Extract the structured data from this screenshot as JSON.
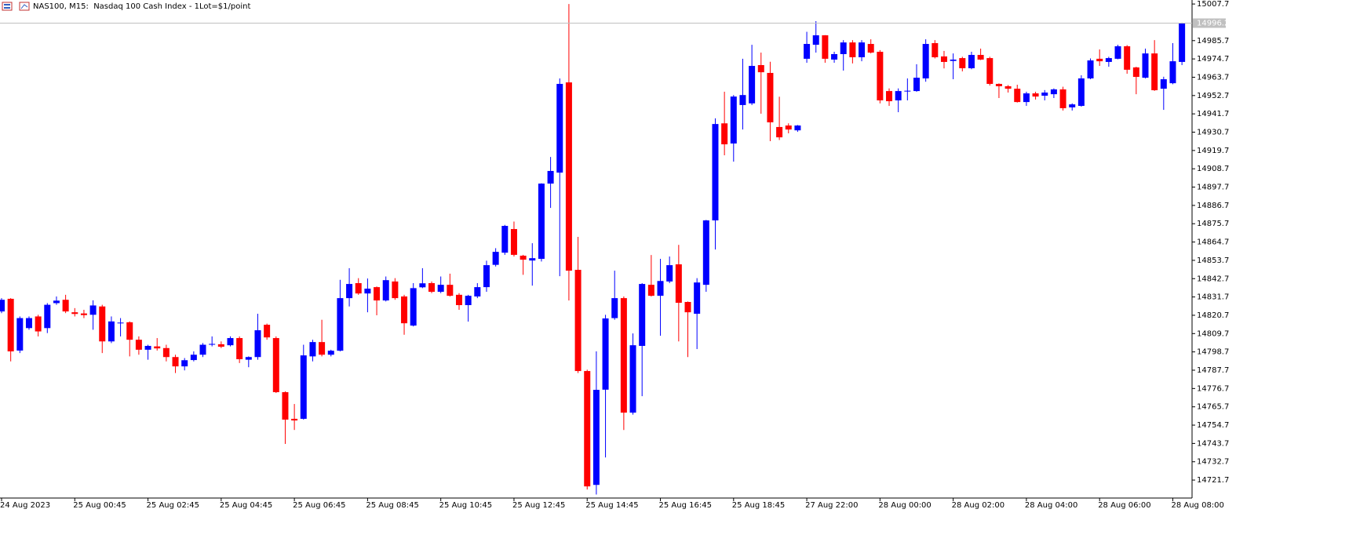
{
  "chart_data": {
    "type": "candlestick",
    "title": "NAS100, M15:  Nasdaq 100 Cash Index - 1Lot=$1/point",
    "categories": [
      "24 Aug 2023",
      null,
      null,
      null,
      null,
      null,
      null,
      null,
      "25 Aug 00:45",
      null,
      null,
      null,
      null,
      null,
      null,
      null,
      "25 Aug 02:45",
      null,
      null,
      null,
      null,
      null,
      null,
      null,
      "25 Aug 04:45",
      null,
      null,
      null,
      null,
      null,
      null,
      null,
      "25 Aug 06:45",
      null,
      null,
      null,
      null,
      null,
      null,
      null,
      "25 Aug 08:45",
      null,
      null,
      null,
      null,
      null,
      null,
      null,
      "25 Aug 10:45",
      null,
      null,
      null,
      null,
      null,
      null,
      null,
      "25 Aug 12:45",
      null,
      null,
      null,
      null,
      null,
      null,
      null,
      "25 Aug 14:45",
      null,
      null,
      null,
      null,
      null,
      null,
      null,
      "25 Aug 16:45",
      null,
      null,
      null,
      null,
      null,
      null,
      null,
      "25 Aug 18:45",
      null,
      null,
      null,
      null,
      null,
      null,
      null,
      "27 Aug 22:00",
      null,
      null,
      null,
      null,
      null,
      null,
      null,
      "28 Aug 00:00",
      null,
      null,
      null,
      null,
      null,
      null,
      null,
      "28 Aug 02:00",
      null,
      null,
      null,
      null,
      null,
      null,
      null,
      "28 Aug 04:00",
      null,
      null,
      null,
      null,
      null,
      null,
      null,
      "28 Aug 06:00",
      null,
      null,
      null,
      null,
      null,
      null,
      null,
      "28 Aug 08:00",
      null
    ],
    "open": [
      14823,
      14830.6,
      14799.5,
      14813,
      14820,
      14813,
      14828,
      14830,
      14822.5,
      14821.8,
      14821,
      14826,
      14805,
      14816,
      14816.5,
      14806,
      14800,
      14802,
      14801,
      14795.6,
      14790,
      14793.8,
      14797,
      14803,
      14803.3,
      14802.7,
      14807,
      14794,
      14795.6,
      14815,
      14807,
      14774.5,
      14758.5,
      14758.5,
      14796,
      14804.6,
      14797,
      14799.4,
      14831,
      14840,
      14833.8,
      14837.6,
      14829.6,
      14841,
      14832,
      14814.5,
      14837.5,
      14840,
      14834.8,
      14839,
      14833,
      14826.8,
      14832,
      14837.6,
      14851,
      14858.3,
      14872.5,
      14856.5,
      14853.6,
      14854.6,
      14899.8,
      14906.4,
      14960.6,
      14848,
      14787.2,
      14718.8,
      14776,
      14819,
      14831,
      14762.2,
      14802.3,
      14839,
      14832.4,
      14841,
      14851.3,
      14828.7,
      14821.6,
      14839,
      14877.7,
      14936,
      14923.9,
      14947,
      14948,
      14971,
      14966.3,
      14933.8,
      14934.7,
      14931.8,
      14974.8,
      14983.2,
      14988.9,
      14974.3,
      14977.6,
      14984.6,
      14975.7,
      14983.7,
      14979,
      14955.4,
      14949.8,
      14955.4,
      14955.4,
      14963,
      14984.2,
      14976.2,
      14973.5,
      14975.2,
      14969.1,
      14977.1,
      14975.2,
      14959.7,
      14958.3,
      14956.8,
      14948.8,
      14954,
      14952.6,
      14953.5,
      14956.4,
      14945.6,
      14946.5,
      14963,
      14974.8,
      14972.9,
      14974.8,
      14982.3,
      14969.6,
      14963.4,
      14978,
      14956.8,
      14960.1,
      14972.9
    ],
    "high": [
      14831,
      14831,
      14820,
      14820,
      14821,
      14828,
      14832,
      14833,
      14825,
      14824,
      14829.7,
      14827,
      14820,
      14819,
      14817,
      14808,
      14803,
      14807,
      14803,
      14797,
      14795,
      14799,
      14804,
      14808,
      14805,
      14808,
      14808,
      14796,
      14821.6,
      14815.7,
      14808,
      14775,
      14767.4,
      14803,
      14806,
      14818,
      14800,
      14842,
      14849,
      14843,
      14842.8,
      14838,
      14844,
      14843,
      14833,
      14840,
      14849,
      14841,
      14844,
      14845.7,
      14834,
      14833,
      14840,
      14853.5,
      14861,
      14875,
      14877,
      14857,
      14864,
      14900,
      14915.8,
      14963,
      15007.7,
      14867.8,
      14788,
      14799,
      14821,
      14847.5,
      14832,
      14809.8,
      14840,
      14856.9,
      14854.6,
      14856,
      14863,
      14829,
      14843,
      14878,
      14939,
      14955,
      14953,
      14974.8,
      14983.2,
      14978.5,
      14973,
      14952,
      14936,
      14935,
      14991,
      14997.4,
      14989,
      14979,
      14986,
      14986,
      14986,
      14986.5,
      14980,
      14957,
      14957,
      14963,
      14971.5,
      14986.5,
      14986,
      14979.5,
      14978,
      14976,
      14979,
      14980.9,
      14976,
      14960,
      14959,
      14959.2,
      14955,
      14955,
      14956,
      14957,
      14958,
      14948,
      14964.9,
      14975,
      14980.4,
      14976,
      14983.2,
      14983,
      14970,
      14980.9,
      14986,
      14964,
      14984.2,
      14996.5
    ],
    "low": [
      14822,
      14793,
      14798,
      14812,
      14808,
      14810,
      14827,
      14822,
      14820,
      14819,
      14812,
      14798,
      14804,
      14808,
      14796,
      14797,
      14794,
      14799.5,
      14793,
      14786,
      14787.6,
      14793,
      14795.6,
      14802,
      14801,
      14802,
      14792,
      14789.5,
      14794,
      14806,
      14774,
      14743.4,
      14751.8,
      14758,
      14793,
      14796,
      14796,
      14799,
      14826,
      14833,
      14822.5,
      14820.7,
      14829,
      14830,
      14809,
      14814,
      14837,
      14834,
      14834,
      14832,
      14824,
      14816.9,
      14831,
      14834.8,
      14850,
      14857,
      14856,
      14845,
      14838.5,
      14853,
      14885.2,
      14844.2,
      14829.6,
      14786,
      14716,
      14713,
      14735.3,
      14818,
      14751.8,
      14761,
      14772.1,
      14832,
      14808.4,
      14840,
      14805,
      14795.6,
      14800.4,
      14834.8,
      14860.2,
      14916.8,
      14913,
      14932.3,
      14947,
      14941.8,
      14925.3,
      14926,
      14930,
      14930.9,
      14972.4,
      14978.5,
      14972.4,
      14972.4,
      14967.7,
      14972,
      14973.3,
      14978,
      14948,
      14946.5,
      14942.7,
      14949.8,
      14955,
      14961,
      14975,
      14969,
      14962.5,
      14967.2,
      14968.5,
      14974,
      14958.7,
      14951.2,
      14954.5,
      14948.5,
      14946.5,
      14950.3,
      14949.8,
      14951.2,
      14943.7,
      14943.7,
      14946,
      14962.5,
      14970.5,
      14970,
      14974.5,
      14965.8,
      14953.5,
      14963,
      14955.5,
      14944.1,
      14959.5,
      14971
    ],
    "close": [
      14830,
      14799,
      14819,
      14819,
      14811,
      14827,
      14829.5,
      14823,
      14821.5,
      14820.8,
      14826.6,
      14805,
      14817,
      14816.3,
      14806,
      14800,
      14802.3,
      14800.8,
      14795.6,
      14790,
      14793.7,
      14797,
      14803,
      14803.5,
      14801.8,
      14807,
      14794.3,
      14795.6,
      14811.7,
      14807.4,
      14774.5,
      14758,
      14757.5,
      14796.6,
      14804.6,
      14797,
      14799.4,
      14831,
      14839.5,
      14833.8,
      14836.7,
      14829.6,
      14841.8,
      14831,
      14815.9,
      14837,
      14839.9,
      14834.8,
      14839,
      14832.4,
      14826.8,
      14832.4,
      14837.6,
      14850.8,
      14858.8,
      14874.4,
      14857,
      14854.1,
      14855,
      14899.8,
      14907.4,
      14959.7,
      14847.5,
      14787.2,
      14717.9,
      14775.9,
      14818.8,
      14831,
      14762.2,
      14802.7,
      14839.5,
      14832.4,
      14841.3,
      14850.8,
      14828.2,
      14822.5,
      14840.4,
      14877.7,
      14935.6,
      14923.4,
      14952.1,
      14953,
      14970.5,
      14966.7,
      14936.6,
      14927.6,
      14932.3,
      14934.7,
      14983.7,
      14988.9,
      14974.8,
      14977.6,
      14984.6,
      14975.7,
      14984.6,
      14978.5,
      14949.8,
      14949.3,
      14955.4,
      14955.6,
      14963.4,
      14983.7,
      14975.7,
      14972.9,
      14974.3,
      14969.1,
      14977.1,
      14974.3,
      14959.7,
      14958.3,
      14956.8,
      14948.8,
      14954,
      14952.1,
      14954.5,
      14956.4,
      14945.1,
      14947.4,
      14963,
      14973.8,
      14973.3,
      14975.2,
      14982.3,
      14968.2,
      14963.9,
      14978,
      14955.9,
      14962.5,
      14973.3,
      14996.2
    ],
    "up_color": "#0000ff",
    "down_color": "#ff0000",
    "price_line": 14996.2,
    "ylim": [
      14710.9,
      15010.1
    ],
    "yticks": [
      15007.7,
      14985.7,
      14974.7,
      14963.7,
      14952.7,
      14941.7,
      14930.7,
      14919.7,
      14908.7,
      14897.7,
      14886.7,
      14875.7,
      14864.7,
      14853.7,
      14842.7,
      14831.7,
      14820.7,
      14809.7,
      14798.7,
      14787.7,
      14776.7,
      14765.7,
      14754.7,
      14743.7,
      14732.7,
      14721.7
    ],
    "grid": false
  }
}
